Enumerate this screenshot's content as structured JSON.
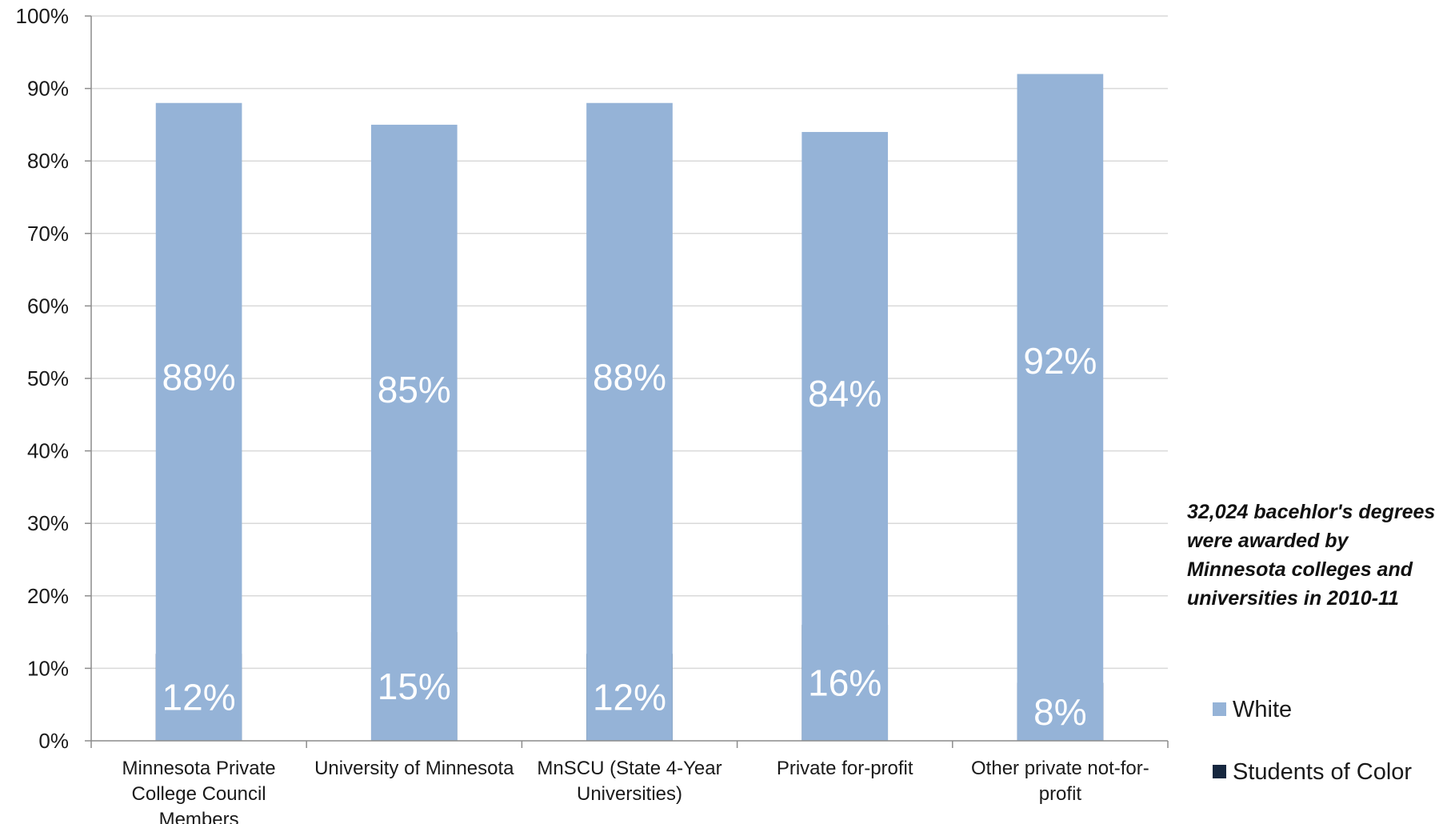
{
  "chart_data": {
    "type": "bar",
    "stacked": true,
    "percent": true,
    "categories": [
      "Minnesota Private College Council Members",
      "University of Minnesota",
      "MnSCU (State 4-Year Universities)",
      "Private for-profit",
      "Other private not-for-profit"
    ],
    "category_label_lines": [
      [
        "Minnesota Private",
        "College Council",
        "Members"
      ],
      [
        "University of Minnesota"
      ],
      [
        "MnSCU (State 4-Year",
        "Universities)"
      ],
      [
        "Private for-profit"
      ],
      [
        "Other private not-for-",
        "profit"
      ]
    ],
    "series": [
      {
        "name": "Students of Color",
        "values": [
          12,
          15,
          12,
          16,
          8
        ],
        "labels": [
          "12%",
          "15%",
          "12%",
          "16%",
          "8%"
        ],
        "color": "#16273f"
      },
      {
        "name": "White",
        "values": [
          88,
          85,
          88,
          84,
          92
        ],
        "labels": [
          "88%",
          "85%",
          "88%",
          "84%",
          "92%"
        ],
        "color": "#95b3d7"
      }
    ],
    "ylim": [
      0,
      100
    ],
    "yticks": [
      "0%",
      "10%",
      "20%",
      "30%",
      "40%",
      "50%",
      "60%",
      "70%",
      "80%",
      "90%",
      "100%"
    ],
    "grid": true,
    "legend_position": "right",
    "legend_order": [
      "White",
      "Students of Color"
    ],
    "annotation": "32,024 bacehlor's degrees were awarded by Minnesota colleges and universities in 2010-11"
  },
  "colors": {
    "grid": "#d9d9d9",
    "axis": "#8c8c8c",
    "text": "#1a1a1a",
    "data_label": "#ffffff"
  }
}
